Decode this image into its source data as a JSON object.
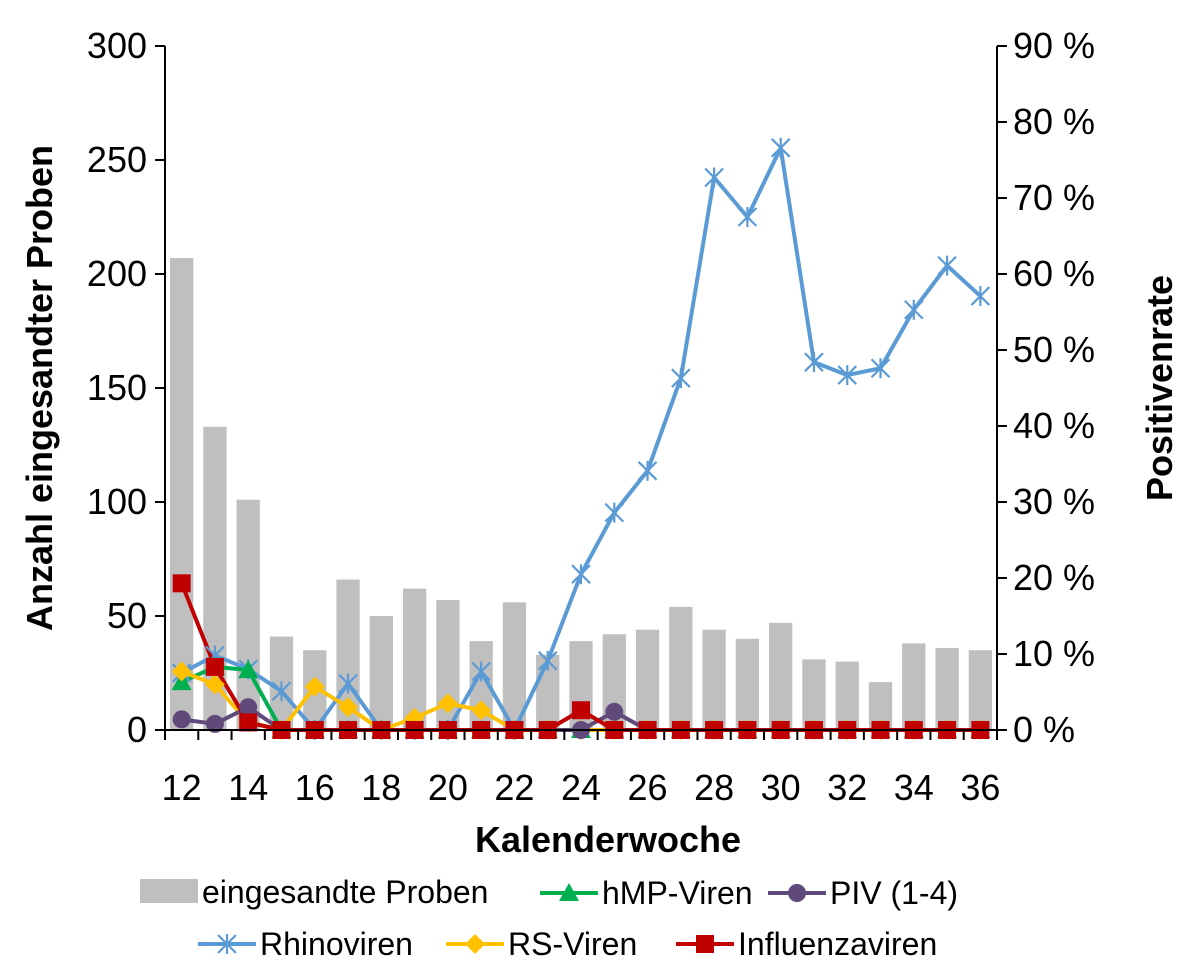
{
  "chart_data": {
    "type": "bar+line",
    "title": "",
    "xlabel": "Kalenderwoche",
    "ylabel_left": "Anzahl eingesandter Proben",
    "ylabel_right": "Positivenrate",
    "ylim_left": [
      0,
      300
    ],
    "ylim_right": [
      0,
      90
    ],
    "left_ticks": [
      "0",
      "50",
      "100",
      "150",
      "200",
      "250",
      "300"
    ],
    "right_ticks": [
      "0 %",
      "10 %",
      "20 %",
      "30 %",
      "40 %",
      "50 %",
      "60 %",
      "70 %",
      "80 %",
      "90 %"
    ],
    "x_tick_labels": [
      "12",
      "14",
      "16",
      "18",
      "20",
      "22",
      "24",
      "26",
      "28",
      "30",
      "32",
      "34",
      "36"
    ],
    "weeks": [
      12,
      13,
      14,
      15,
      16,
      17,
      18,
      19,
      20,
      21,
      22,
      23,
      24,
      25,
      26,
      27,
      28,
      29,
      30,
      31,
      32,
      33,
      34,
      35,
      36
    ],
    "bars": {
      "name": "eingesandte Proben",
      "color": "#bfbfbf",
      "values": [
        207,
        133,
        101,
        41,
        35,
        66,
        50,
        62,
        57,
        39,
        56,
        33,
        39,
        42,
        44,
        54,
        44,
        40,
        47,
        31,
        30,
        21,
        38,
        36,
        35
      ]
    },
    "series": [
      {
        "name": "Rhinoviren",
        "color": "#5b9bd5",
        "marker": "asterisk",
        "values": [
          7.5,
          9.8,
          8.0,
          5.1,
          0,
          6.1,
          0,
          0,
          0,
          7.7,
          0,
          9.1,
          20.5,
          28.6,
          34.1,
          46.3,
          72.7,
          67.5,
          76.6,
          48.4,
          46.7,
          47.6,
          55.3,
          61.1,
          57.1
        ]
      },
      {
        "name": "hMP-Viren",
        "color": "#00b050",
        "marker": "triangle",
        "values": [
          6.3,
          8.3,
          7.9,
          0,
          0,
          0,
          0,
          0,
          0,
          0,
          0,
          0,
          0,
          0,
          0,
          0,
          0,
          0,
          0,
          0,
          0,
          0,
          0,
          0,
          0
        ]
      },
      {
        "name": "RS-Viren",
        "color": "#ffc000",
        "marker": "diamond",
        "values": [
          7.7,
          6.0,
          1.0,
          0,
          5.7,
          3.0,
          0,
          1.6,
          3.5,
          2.6,
          0,
          0,
          0,
          0,
          0,
          0,
          0,
          0,
          0,
          0,
          0,
          0,
          0,
          0,
          0
        ]
      },
      {
        "name": "PIV (1-4)",
        "color": "#604a7b",
        "marker": "circle",
        "values": [
          1.4,
          0.8,
          3.0,
          0,
          0,
          0,
          0,
          0,
          0,
          0,
          0,
          0,
          0,
          2.4,
          0,
          0,
          0,
          0,
          0,
          0,
          0,
          0,
          0,
          0,
          0
        ]
      },
      {
        "name": "Influenzaviren",
        "color": "#c00000",
        "marker": "square",
        "values": [
          19.3,
          8.3,
          1.0,
          0,
          0,
          0,
          0,
          0,
          0,
          0,
          0,
          0,
          2.6,
          0,
          0,
          0,
          0,
          0,
          0,
          0,
          0,
          0,
          0,
          0,
          0
        ]
      }
    ],
    "legend": {
      "position": "bottom",
      "row1": [
        "eingesandte Proben",
        "hMP-Viren",
        "PIV (1-4)"
      ],
      "row2": [
        "Rhinoviren",
        "RS-Viren",
        "Influenzaviren"
      ]
    },
    "grid": false
  }
}
